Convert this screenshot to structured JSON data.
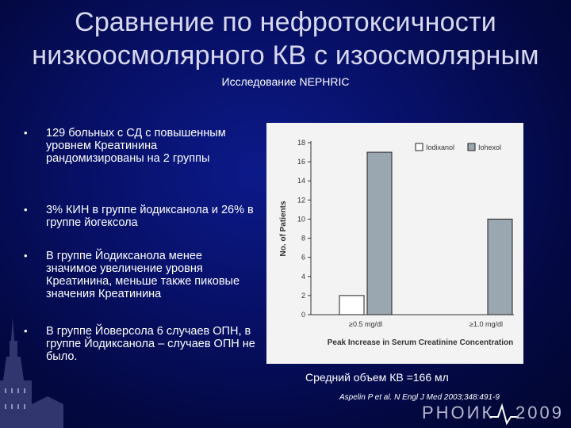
{
  "slide": {
    "title_line1": "Сравнение по нефротоксичности",
    "title_line2": "низкоосмолярного КВ с изоосмолярным",
    "subtitle": "Исследование NEPHRIC",
    "bullets": [
      "129 больных с СД с повышенным уровнем Креатинина рандомизированы на 2 группы",
      "3% КИН в группе йодиксанола и 26% в группе йогексола",
      "В группе Йодиксанола менее значимое увеличение уровня Креатинина, меньше также пиковые значения Креатинина",
      "В группе Йоверсола 6 случаев ОПН, в группе Йодиксанола – случаев ОПН не было."
    ],
    "bullet_symbol": "•",
    "avg_volume": "Средний объем КВ =166 мл",
    "citation": "Aspelin P et al. N Engl J Med 2003;348:491-9",
    "brand_text": "РНОИК",
    "brand_year": "2009",
    "colors": {
      "title": "#d8d8f0",
      "background": "#071066",
      "iodixanol": "#ffffff",
      "iohexol": "#9aa6b0"
    }
  },
  "chart_data": {
    "type": "bar",
    "categories": [
      "≥0.5 mg/dl",
      "≥1.0 mg/dl"
    ],
    "series": [
      {
        "name": "Iodixanol",
        "values": [
          2,
          0
        ]
      },
      {
        "name": "Iohexol",
        "values": [
          17,
          10
        ]
      }
    ],
    "xlabel": "Peak Increase in Serum Creatinine Concentration",
    "ylabel": "No. of Patients",
    "ylim": [
      0,
      18
    ],
    "yticks": [
      "0",
      "2",
      "4",
      "6",
      "8",
      "10",
      "12",
      "14",
      "16",
      "18"
    ],
    "legend_position": "top-right",
    "grid": false
  }
}
